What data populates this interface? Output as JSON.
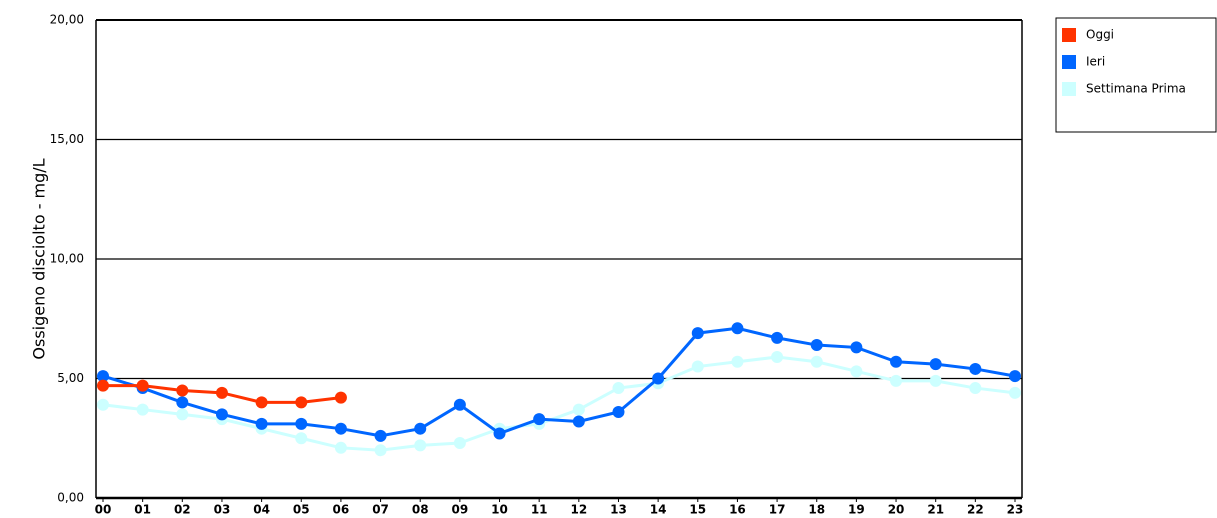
{
  "chart_data": {
    "type": "line",
    "y_label": "Ossigeno disciolto - mg/L",
    "categories": [
      "00",
      "01",
      "02",
      "03",
      "04",
      "05",
      "06",
      "07",
      "08",
      "09",
      "10",
      "11",
      "12",
      "13",
      "14",
      "15",
      "16",
      "17",
      "18",
      "19",
      "20",
      "21",
      "22",
      "23"
    ],
    "series": [
      {
        "name": "Oggi",
        "color": "#ff3300",
        "values": [
          4.7,
          4.7,
          4.5,
          4.4,
          4.0,
          4.0,
          4.2,
          null,
          null,
          null,
          null,
          null,
          null,
          null,
          null,
          null,
          null,
          null,
          null,
          null,
          null,
          null,
          null,
          null
        ]
      },
      {
        "name": "Ieri",
        "color": "#0066ff",
        "values": [
          5.1,
          4.6,
          4.0,
          3.5,
          3.1,
          3.1,
          2.9,
          2.6,
          2.9,
          3.9,
          2.7,
          3.3,
          3.2,
          3.6,
          5.0,
          6.9,
          7.1,
          6.7,
          6.4,
          6.3,
          5.7,
          5.6,
          5.4,
          5.1
        ]
      },
      {
        "name": "Settimana Prima",
        "color": "#ccffff",
        "values": [
          3.9,
          3.7,
          3.5,
          3.3,
          2.9,
          2.5,
          2.1,
          2.0,
          2.2,
          2.3,
          2.9,
          3.1,
          3.7,
          4.6,
          4.8,
          5.5,
          5.7,
          5.9,
          5.7,
          5.3,
          4.9,
          4.9,
          4.6,
          4.4
        ]
      }
    ],
    "ylim": [
      0,
      20
    ],
    "yticks": [
      {
        "value": 0,
        "label": "0,00"
      },
      {
        "value": 5,
        "label": "5,00"
      },
      {
        "value": 10,
        "label": "10,00"
      },
      {
        "value": 15,
        "label": "15,00"
      },
      {
        "value": 20,
        "label": "20,00"
      }
    ],
    "grid": true,
    "legend": "right"
  }
}
